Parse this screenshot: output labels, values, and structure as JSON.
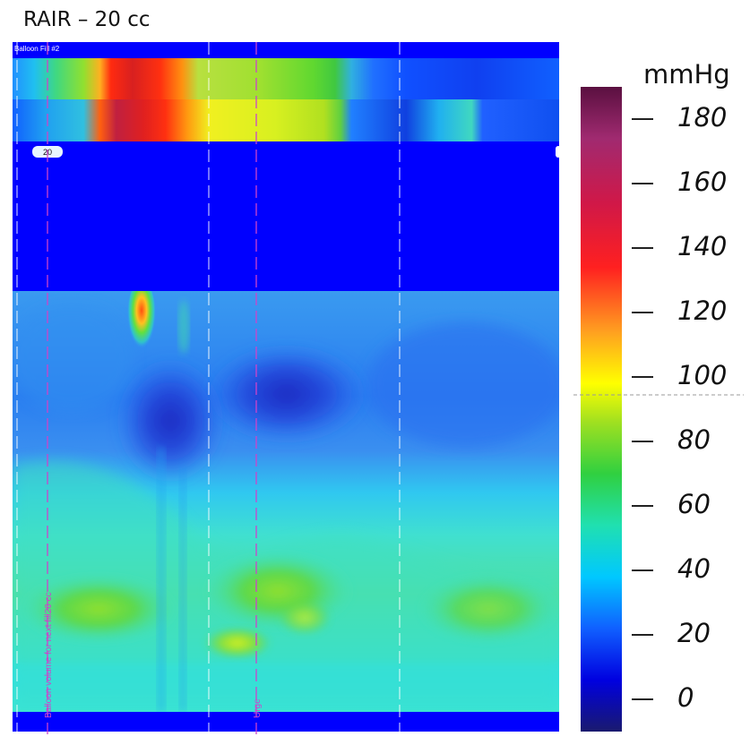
{
  "title": "RAIR – 20 cc",
  "panel_label": "Balloon Fill #2",
  "volume_badge": "20",
  "chart_data": {
    "type": "heatmap",
    "title": "RAIR – 20 cc",
    "colorbar": {
      "label": "mmHg",
      "range": [
        -10,
        190
      ],
      "ticks": [
        0,
        20,
        40,
        60,
        80,
        100,
        120,
        140,
        160,
        180
      ],
      "colormap": "jet"
    },
    "markers": [
      {
        "label": "Balloon volume for next fill20 cc",
        "color": "#cc44cc"
      },
      {
        "label": "Urge",
        "color": "#cc44cc"
      }
    ],
    "features": {
      "peak_pressure_mmHg": 140,
      "lower_band_typical_mmHg": [
        20,
        45
      ]
    },
    "colors": {
      "saturated_background": "#0000ff",
      "marker_line": "#cc44cc",
      "panel_divider": "#ffffff"
    }
  }
}
